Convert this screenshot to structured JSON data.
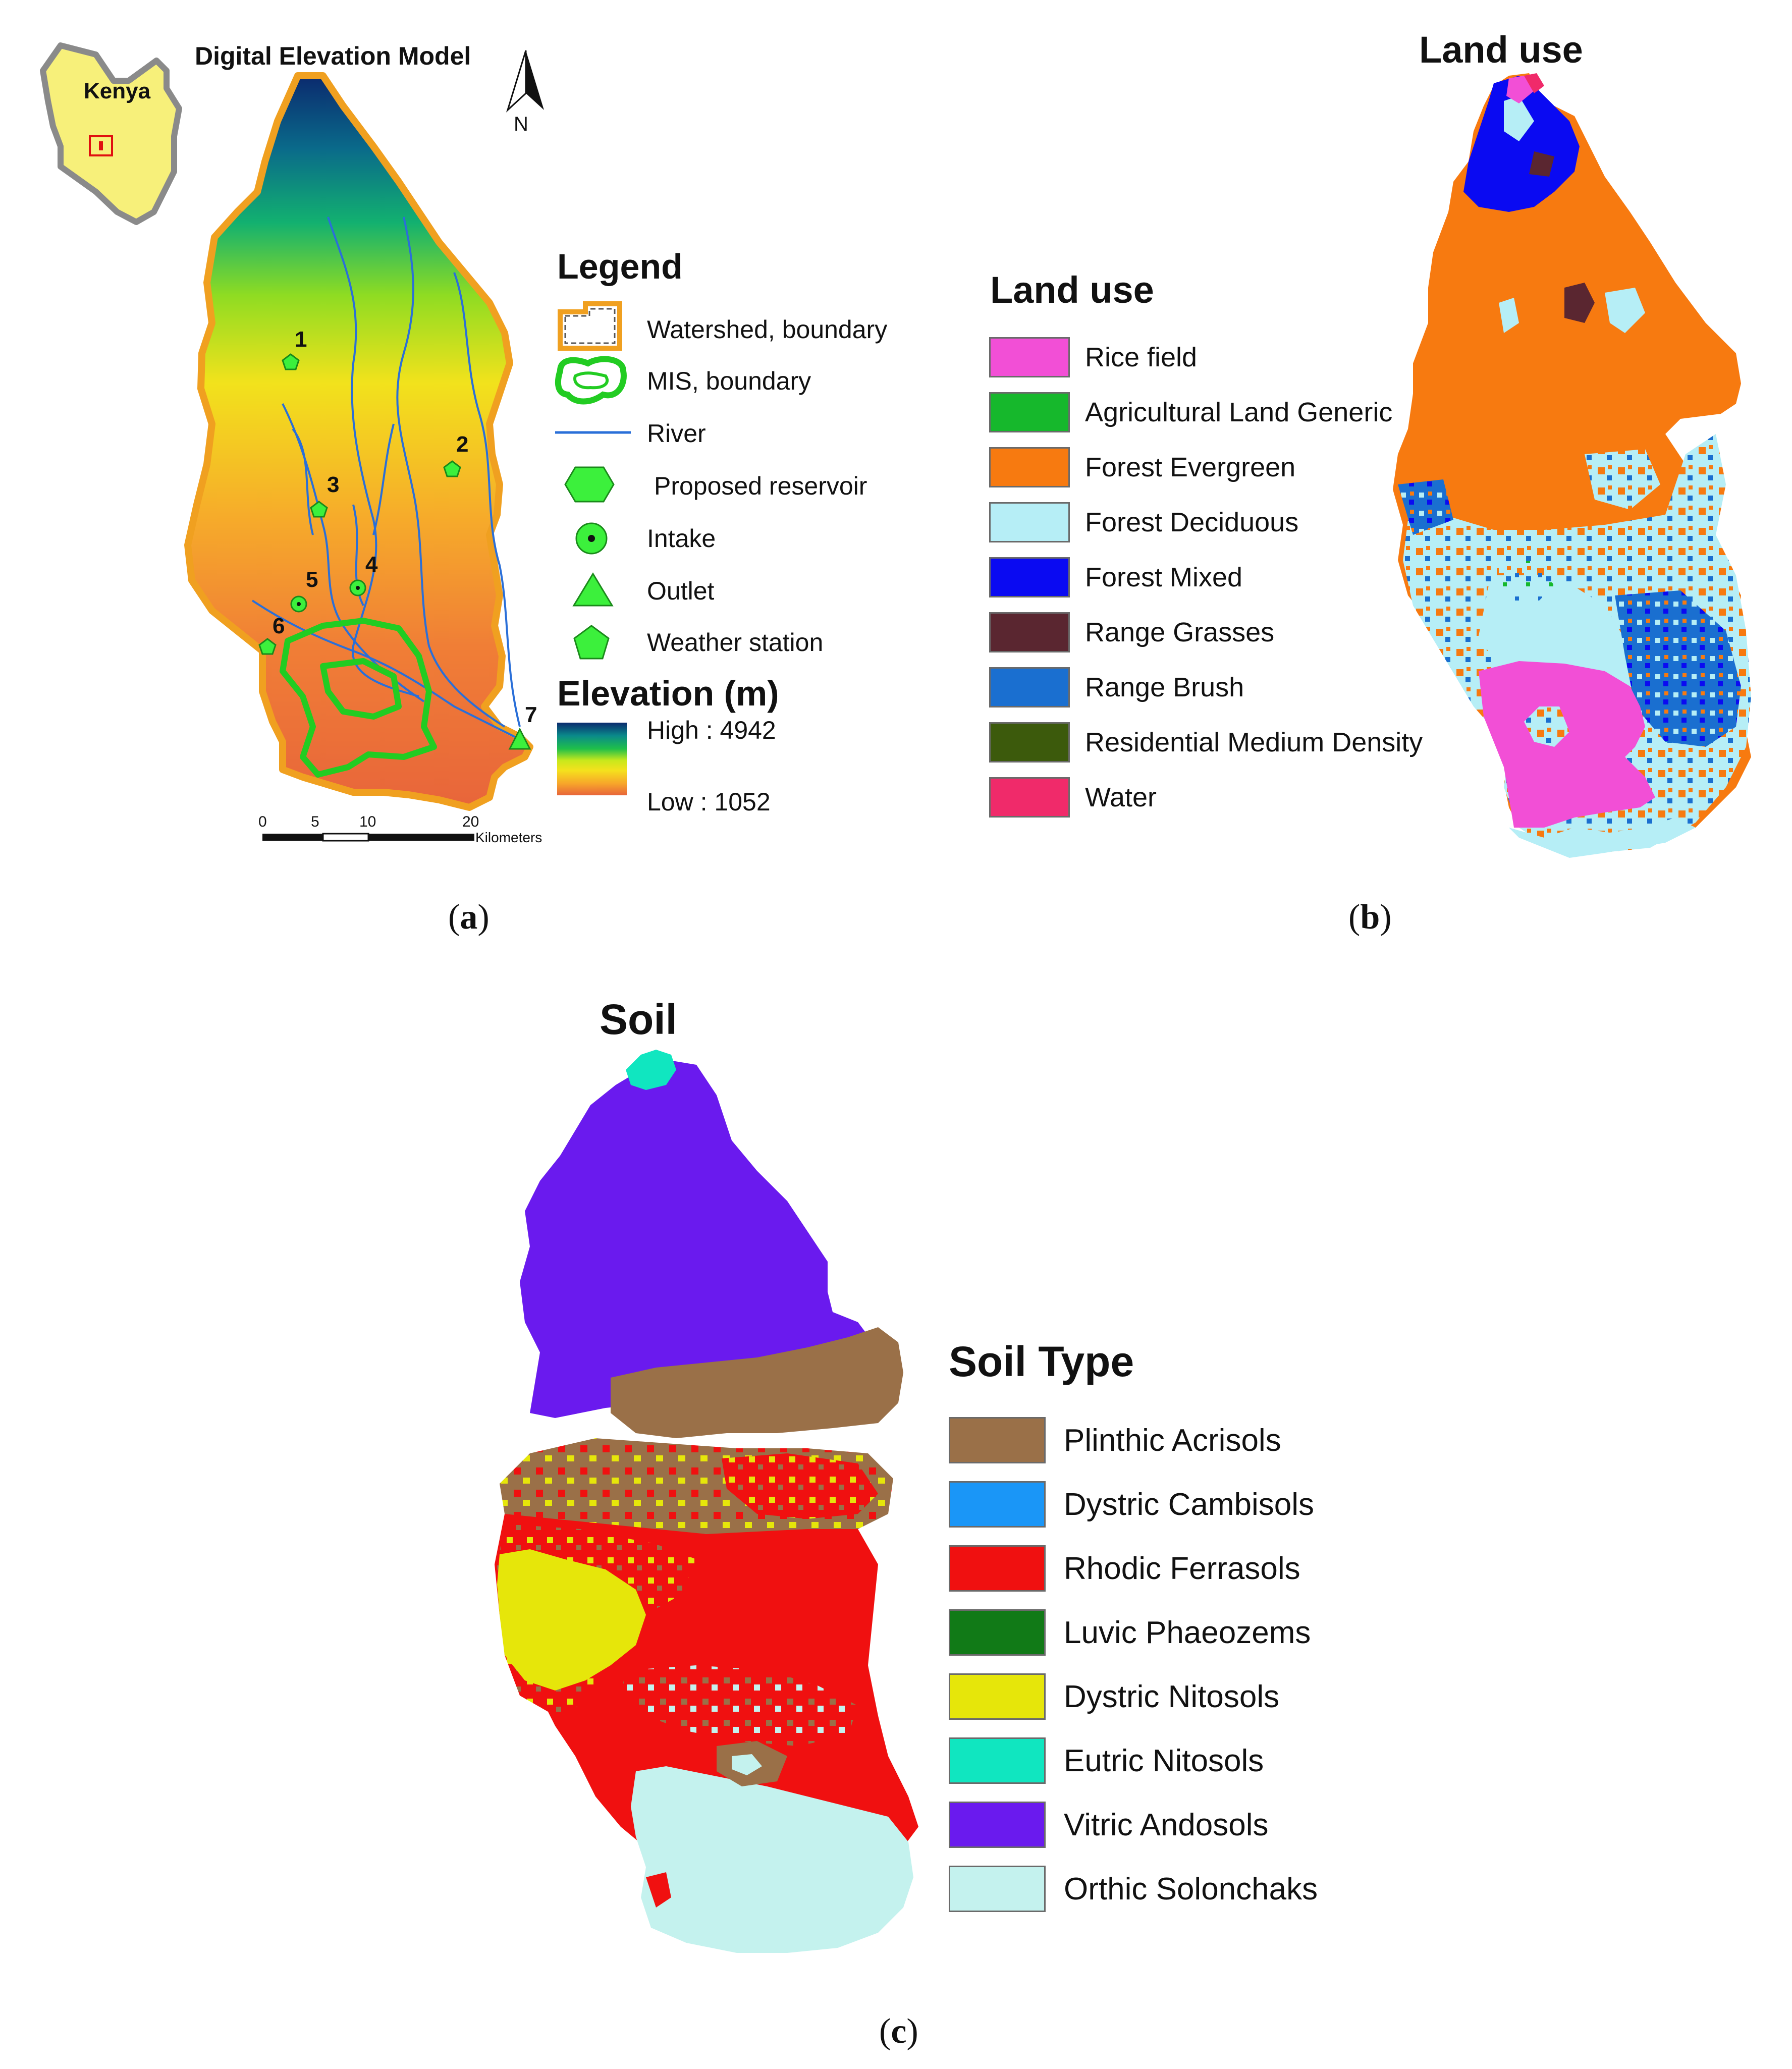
{
  "panel_a": {
    "title": "Digital Elevation Model",
    "label": "a",
    "inset_country": "Kenya",
    "north_label": "N",
    "legend_title": "Legend",
    "legend_items": [
      {
        "label": "Watershed, boundary",
        "icon": "watershed-boundary-icon"
      },
      {
        "label": "MIS, boundary",
        "icon": "mis-boundary-icon"
      },
      {
        "label": "River",
        "icon": "river-line-icon"
      },
      {
        "label": "Proposed reservoir",
        "icon": "hexagon-icon"
      },
      {
        "label": "Intake",
        "icon": "intake-circle-icon"
      },
      {
        "label": "Outlet",
        "icon": "triangle-icon"
      },
      {
        "label": "Weather station",
        "icon": "pentagon-icon"
      }
    ],
    "elevation_title": "Elevation (m)",
    "elevation_high": "High : 4942",
    "elevation_low": "Low : 1052",
    "scale_ticks": [
      "0",
      "5",
      "10",
      "20"
    ],
    "scale_unit": "Kilometers",
    "points": [
      {
        "label": "1",
        "type": "weather-station"
      },
      {
        "label": "2",
        "type": "weather-station"
      },
      {
        "label": "3",
        "type": "weather-station"
      },
      {
        "label": "4",
        "type": "intake"
      },
      {
        "label": "5",
        "type": "intake"
      },
      {
        "label": "6",
        "type": "weather-station"
      },
      {
        "label": "7",
        "type": "outlet"
      }
    ],
    "colors": {
      "ramp": [
        "#0b2a6e",
        "#0a7a7a",
        "#1fbf4a",
        "#9be021",
        "#f5e11d",
        "#f7a52a",
        "#f07a35",
        "#e8653a"
      ],
      "watershed": "#f0a020",
      "mis": "#22cc22",
      "river": "#2a6fd8",
      "marker": "#3cf03c",
      "inset_fill": "#f7f07a"
    }
  },
  "panel_b": {
    "title": "Land use",
    "label": "b",
    "legend_title": "Land use",
    "legend_items": [
      {
        "label": "Rice field",
        "color": "#f24fd6"
      },
      {
        "label": "Agricultural Land Generic",
        "color": "#16b82c"
      },
      {
        "label": "Forest Evergreen",
        "color": "#f77a10"
      },
      {
        "label": "Forest Deciduous",
        "color": "#b6eef6"
      },
      {
        "label": "Forest Mixed",
        "color": "#0a0af2"
      },
      {
        "label": "Range Grasses",
        "color": "#5a2630"
      },
      {
        "label": "Range Brush",
        "color": "#1a6fd0"
      },
      {
        "label": "Residential Medium Density",
        "color": "#3c5a0c"
      },
      {
        "label": "Water",
        "color": "#f02a6a"
      }
    ]
  },
  "panel_c": {
    "title": "Soil",
    "label": "c",
    "legend_title": "Soil Type",
    "legend_items": [
      {
        "label": "Plinthic Acrisols",
        "color": "#9a7048"
      },
      {
        "label": "Dystric Cambisols",
        "color": "#1a96f7"
      },
      {
        "label": "Rhodic Ferrasols",
        "color": "#f01010"
      },
      {
        "label": "Luvic Phaeozems",
        "color": "#117a17"
      },
      {
        "label": "Dystric Nitosols",
        "color": "#e6e60a"
      },
      {
        "label": "Eutric Nitosols",
        "color": "#10e6c0"
      },
      {
        "label": "Vitric Andosols",
        "color": "#6a1aee"
      },
      {
        "label": "Orthic Solonchaks",
        "color": "#c4f2ee"
      }
    ]
  }
}
